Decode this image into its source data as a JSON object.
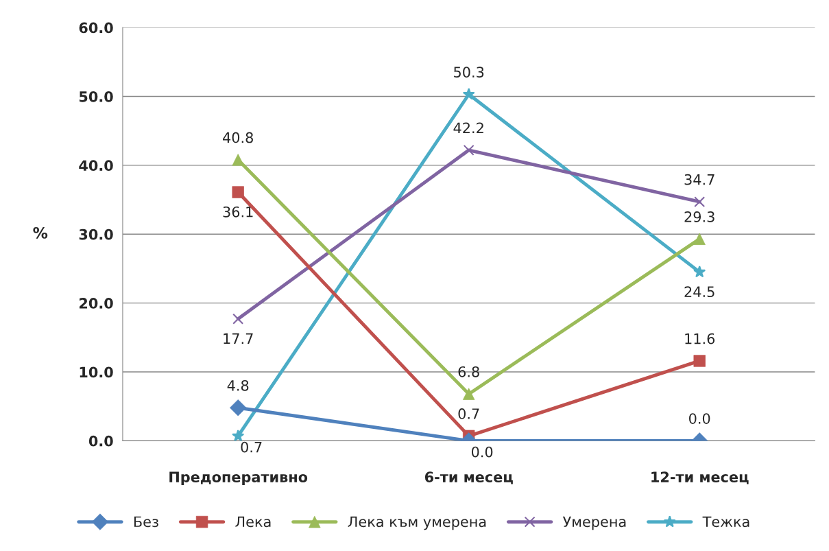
{
  "chart_data": {
    "type": "line",
    "ylabel": "%",
    "categories": [
      "Предоперативно",
      "6-ти месец",
      "12-ти месец"
    ],
    "series": [
      {
        "name": "Без",
        "color": "#4f81bd",
        "marker": "diamond",
        "values": [
          4.8,
          0.0,
          0.0
        ],
        "value_labels": [
          "4.8",
          "0.0",
          "0.0"
        ]
      },
      {
        "name": "Лека",
        "color": "#c0504d",
        "marker": "square",
        "values": [
          36.1,
          0.7,
          11.6
        ],
        "value_labels": [
          "36.1",
          "0.7",
          "11.6"
        ]
      },
      {
        "name": "Лека към умерена",
        "color": "#9bbb59",
        "marker": "triangle",
        "values": [
          40.8,
          6.8,
          29.3
        ],
        "value_labels": [
          "40.8",
          "6.8",
          "29.3"
        ]
      },
      {
        "name": "Умерена",
        "color": "#8064a2",
        "marker": "cross",
        "values": [
          17.7,
          42.2,
          34.7
        ],
        "value_labels": [
          "17.7",
          "42.2",
          "34.7"
        ]
      },
      {
        "name": "Тежка",
        "color": "#4bacc6",
        "marker": "star",
        "values": [
          0.7,
          50.3,
          24.5
        ],
        "value_labels": [
          "0.7",
          "50.3",
          "24.5"
        ]
      }
    ],
    "ylim": [
      0,
      60
    ],
    "yticks": [
      {
        "value": 0,
        "label": "0.0"
      },
      {
        "value": 10,
        "label": "10.0"
      },
      {
        "value": 20,
        "label": "20.0"
      },
      {
        "value": 30,
        "label": "30.0"
      },
      {
        "value": 40,
        "label": "40.0"
      },
      {
        "value": 50,
        "label": "50.0"
      },
      {
        "value": 60,
        "label": "60.0"
      }
    ],
    "grid": "y",
    "legend": "bottom",
    "line_style": "solid"
  }
}
